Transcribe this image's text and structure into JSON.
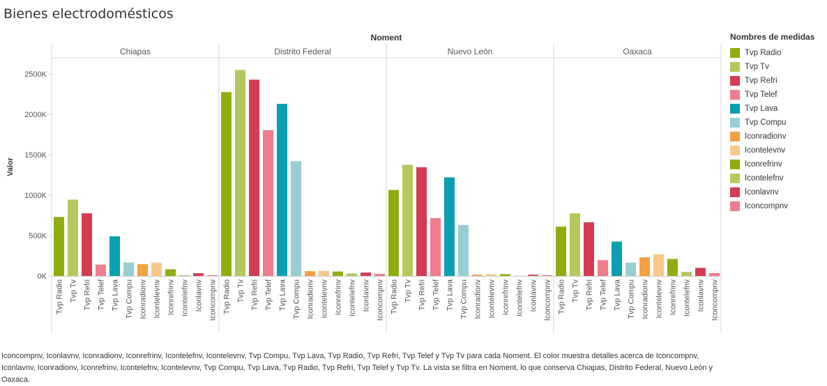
{
  "title": "Bienes electrodomésticos",
  "legend": {
    "title": "Nombres de medidas",
    "items": [
      {
        "label": "Tvp Radio",
        "color": "#8fad0f"
      },
      {
        "label": "Tvp Tv",
        "color": "#b5c85d"
      },
      {
        "label": "Tvp Refri",
        "color": "#d33c52"
      },
      {
        "label": "Tvp Telef",
        "color": "#f07c8e"
      },
      {
        "label": "Tvp Lava",
        "color": "#0a9fb2"
      },
      {
        "label": "Tvp Compu",
        "color": "#97ced2"
      },
      {
        "label": "Iconradionv",
        "color": "#f2a040"
      },
      {
        "label": "Icontelevnv",
        "color": "#f8c88a"
      },
      {
        "label": "Iconrefrinv",
        "color": "#8fad0f"
      },
      {
        "label": "Icontelefnv",
        "color": "#b5c85d"
      },
      {
        "label": "Iconlavnv",
        "color": "#d33c52"
      },
      {
        "label": "Iconcompnv",
        "color": "#f07c8e"
      }
    ]
  },
  "caption": "Iconcompnv, Iconlavnv, Iconradionv, Iconrefrinv, Icontelefnv, Icontelevnv, Tvp Compu, Tvp Lava, Tvp Radio, Tvp Refri, Tvp Telef y Tvp Tv para cada Noment.  El color muestra detalles acerca de Iconcompnv, Iconlavnv, Iconradionv, Iconrefrinv, Icontelefnv, Icontelevnv, Tvp Compu, Tvp Lava, Tvp Radio, Tvp Refri, Tvp Telef y Tvp Tv. La vista se filtra en Noment, lo que conserva Chiapas, Distrito Federal, Nuevo León y Oaxaca.",
  "chart_data": {
    "type": "bar",
    "title": "Bienes electrodomésticos",
    "column_header": "Noment",
    "ylabel": "Valor",
    "ylim": [
      0,
      2700000
    ],
    "yticks": [
      0,
      500000,
      1000000,
      1500000,
      2000000,
      2500000
    ],
    "ytick_labels": [
      "0K",
      "500K",
      "1000K",
      "1500K",
      "2000K",
      "2500K"
    ],
    "grid": false,
    "legend_position": "right",
    "categories": [
      "Tvp Radio",
      "Tvp Tv",
      "Tvp Refri",
      "Tvp Telef",
      "Tvp Lava",
      "Tvp Compu",
      "Iconradionv",
      "Icontelevnv",
      "Iconrefrinv",
      "Icontelefnv",
      "Iconlavnv",
      "Iconcompnv"
    ],
    "colors": [
      "#8fad0f",
      "#b5c85d",
      "#d33c52",
      "#f07c8e",
      "#0a9fb2",
      "#97ced2",
      "#f2a040",
      "#f8c88a",
      "#8fad0f",
      "#b5c85d",
      "#d33c52",
      "#f07c8e"
    ],
    "panels": [
      {
        "name": "Chiapas",
        "values": [
          730000,
          945000,
          775000,
          140000,
          490000,
          165000,
          145000,
          165000,
          82000,
          8000,
          33000,
          8000
        ]
      },
      {
        "name": "Distrito Federal",
        "values": [
          2275000,
          2550000,
          2430000,
          1805000,
          2130000,
          1420000,
          58000,
          62000,
          55000,
          30000,
          42000,
          25000
        ]
      },
      {
        "name": "Nuevo León",
        "values": [
          1065000,
          1375000,
          1345000,
          715000,
          1220000,
          630000,
          15000,
          22000,
          22000,
          3000,
          15000,
          8000
        ]
      },
      {
        "name": "Oaxaca",
        "values": [
          610000,
          775000,
          665000,
          195000,
          425000,
          165000,
          230000,
          270000,
          210000,
          50000,
          100000,
          35000
        ]
      }
    ]
  }
}
